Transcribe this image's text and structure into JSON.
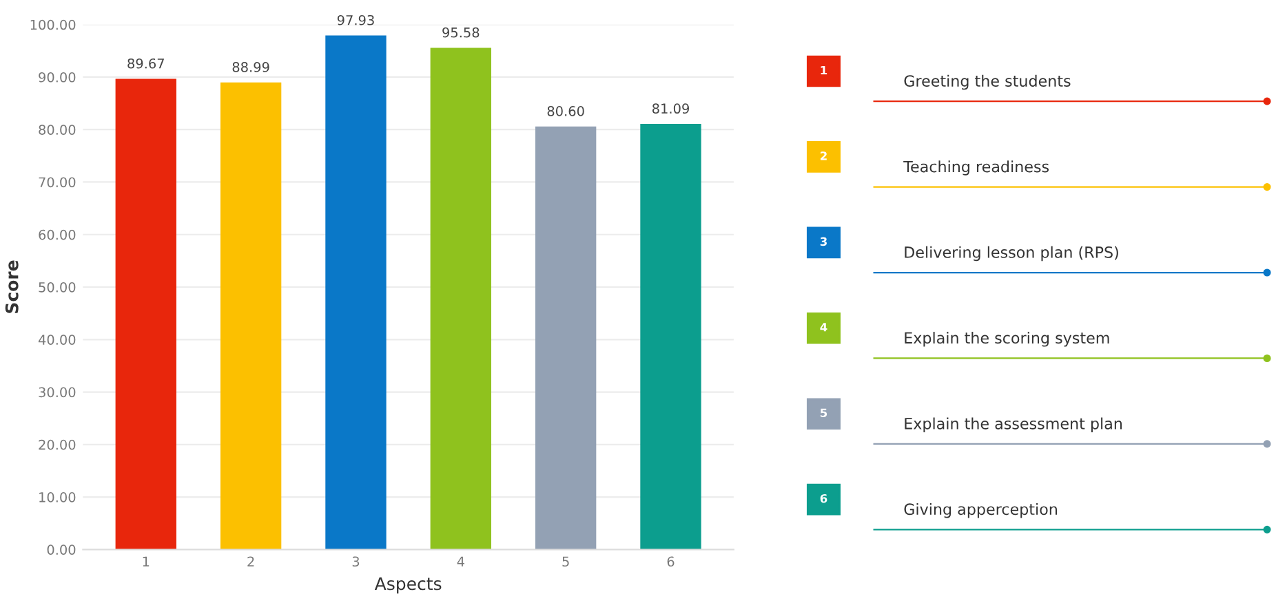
{
  "chart_data": {
    "type": "bar",
    "xlabel": "Aspects",
    "ylabel": "Score",
    "categories": [
      "1",
      "2",
      "3",
      "4",
      "5",
      "6"
    ],
    "values": [
      89.67,
      88.99,
      97.93,
      95.58,
      80.6,
      81.09
    ],
    "value_labels": [
      "89.67",
      "88.99",
      "97.93",
      "95.58",
      "80.60",
      "81.09"
    ],
    "colors": [
      "#e8260c",
      "#fcc000",
      "#0a78c8",
      "#8fc21e",
      "#93a1b4",
      "#0c9e8e"
    ],
    "ylim": [
      0,
      100
    ],
    "yticks": [
      {
        "value": 0,
        "label": "0.00"
      },
      {
        "value": 10,
        "label": "10.00"
      },
      {
        "value": 20,
        "label": "20.00"
      },
      {
        "value": 30,
        "label": "30.00"
      },
      {
        "value": 40,
        "label": "40.00"
      },
      {
        "value": 50,
        "label": "50.00"
      },
      {
        "value": 60,
        "label": "60.00"
      },
      {
        "value": 70,
        "label": "70.00"
      },
      {
        "value": 80,
        "label": "80.00"
      },
      {
        "value": 90,
        "label": "90.00"
      },
      {
        "value": 100,
        "label": "100.00"
      }
    ],
    "grid": "y",
    "annotations": [
      "Greeting the students",
      "Teaching readiness",
      "Delivering lesson plan (RPS)",
      "Explain the scoring system",
      "Explain the assessment plan",
      "Giving apperception"
    ]
  }
}
